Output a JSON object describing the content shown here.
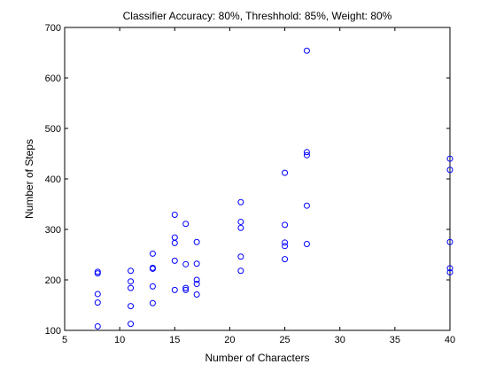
{
  "chart_data": {
    "type": "scatter",
    "title": "Classifier Accuracy: 80%, Threshhold: 85%, Weight: 80%",
    "xlabel": "Number of Characters",
    "ylabel": "Number of Steps",
    "xlim": [
      5,
      40
    ],
    "ylim": [
      100,
      700
    ],
    "xticks": [
      5,
      10,
      15,
      20,
      25,
      30,
      35,
      40
    ],
    "yticks": [
      100,
      200,
      300,
      400,
      500,
      600,
      700
    ],
    "grid": false,
    "marker": "open-circle",
    "marker_color": "#0000ff",
    "points": [
      {
        "x": 8,
        "y": 108
      },
      {
        "x": 8,
        "y": 155
      },
      {
        "x": 8,
        "y": 172
      },
      {
        "x": 8,
        "y": 213
      },
      {
        "x": 8,
        "y": 216
      },
      {
        "x": 11,
        "y": 113
      },
      {
        "x": 11,
        "y": 148
      },
      {
        "x": 11,
        "y": 184
      },
      {
        "x": 11,
        "y": 197
      },
      {
        "x": 11,
        "y": 218
      },
      {
        "x": 13,
        "y": 154
      },
      {
        "x": 13,
        "y": 187
      },
      {
        "x": 13,
        "y": 222
      },
      {
        "x": 13,
        "y": 224
      },
      {
        "x": 13,
        "y": 252
      },
      {
        "x": 15,
        "y": 180
      },
      {
        "x": 15,
        "y": 238
      },
      {
        "x": 15,
        "y": 273
      },
      {
        "x": 15,
        "y": 284
      },
      {
        "x": 15,
        "y": 329
      },
      {
        "x": 16,
        "y": 180
      },
      {
        "x": 16,
        "y": 184
      },
      {
        "x": 16,
        "y": 231
      },
      {
        "x": 16,
        "y": 311
      },
      {
        "x": 17,
        "y": 171
      },
      {
        "x": 17,
        "y": 192
      },
      {
        "x": 17,
        "y": 200
      },
      {
        "x": 17,
        "y": 232
      },
      {
        "x": 17,
        "y": 275
      },
      {
        "x": 21,
        "y": 218
      },
      {
        "x": 21,
        "y": 246
      },
      {
        "x": 21,
        "y": 303
      },
      {
        "x": 21,
        "y": 315
      },
      {
        "x": 21,
        "y": 354
      },
      {
        "x": 25,
        "y": 241
      },
      {
        "x": 25,
        "y": 267
      },
      {
        "x": 25,
        "y": 274
      },
      {
        "x": 25,
        "y": 309
      },
      {
        "x": 25,
        "y": 412
      },
      {
        "x": 27,
        "y": 271
      },
      {
        "x": 27,
        "y": 347
      },
      {
        "x": 27,
        "y": 447
      },
      {
        "x": 27,
        "y": 453
      },
      {
        "x": 27,
        "y": 654
      },
      {
        "x": 40,
        "y": 215
      },
      {
        "x": 40,
        "y": 223
      },
      {
        "x": 40,
        "y": 275
      },
      {
        "x": 40,
        "y": 418
      },
      {
        "x": 40,
        "y": 440
      }
    ]
  }
}
